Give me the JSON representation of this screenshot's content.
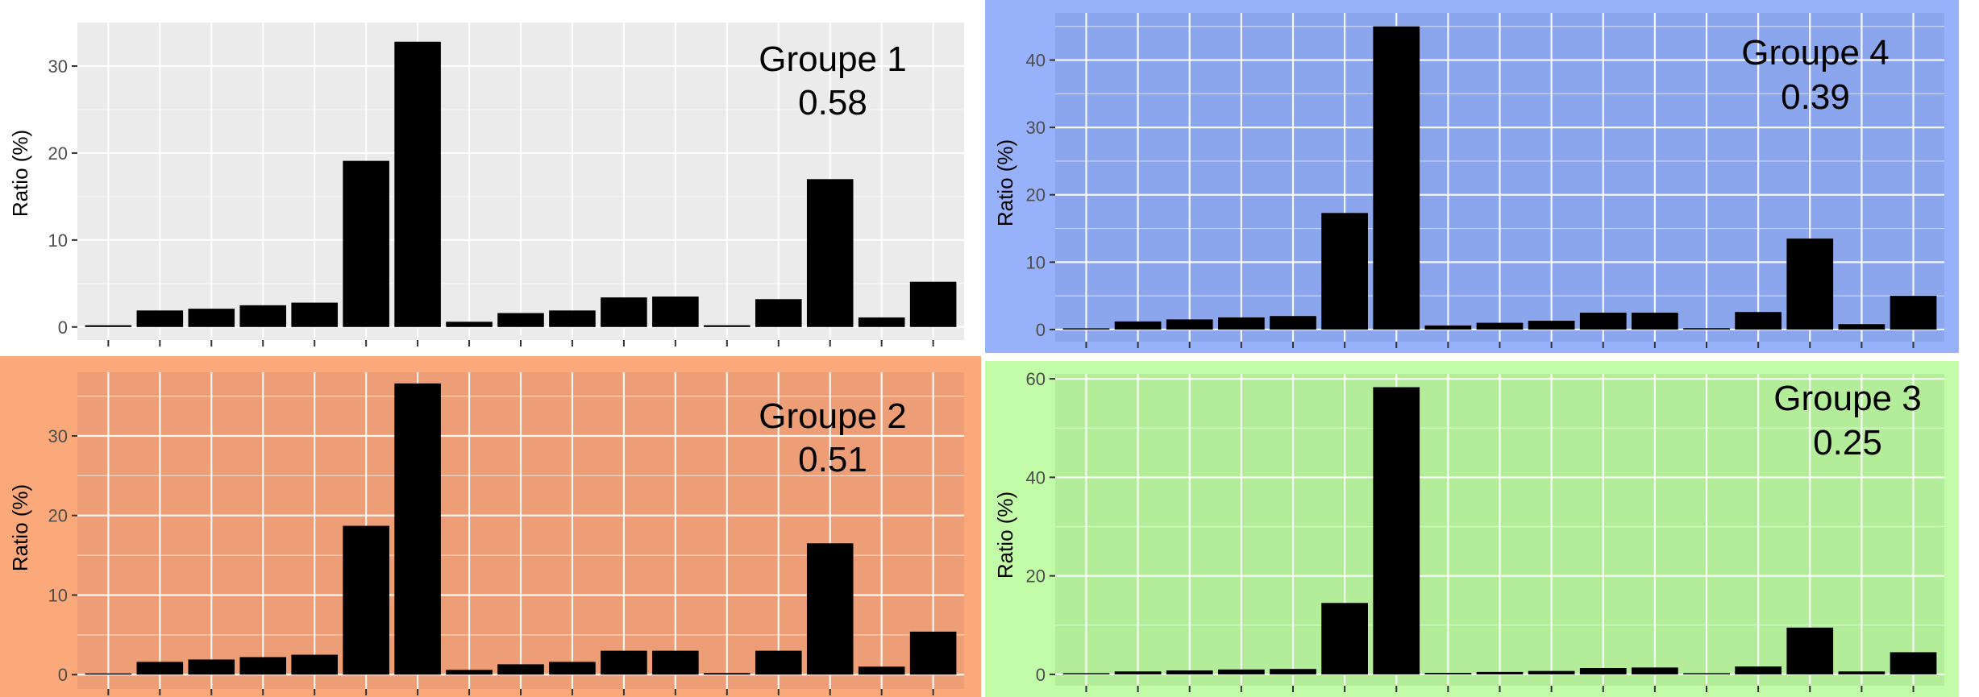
{
  "chart_data": [
    {
      "type": "bar",
      "ylabel": "Ratio (%)",
      "annotation_title": "Groupe 1",
      "annotation_value": "0.58",
      "yticks": [
        0,
        10,
        20,
        30
      ],
      "ylim": [
        -1.5,
        35
      ],
      "bg_color": "#ffffff",
      "plot_bg_color": "#ebebeb",
      "values": [
        0.2,
        1.9,
        2.1,
        2.5,
        2.8,
        19.1,
        32.8,
        0.6,
        1.6,
        1.9,
        3.4,
        3.5,
        0.2,
        3.2,
        17.0,
        1.1,
        5.2
      ]
    },
    {
      "type": "bar",
      "ylabel": "Ratio (%)",
      "annotation_title": "Groupe 4",
      "annotation_value": "0.39",
      "yticks": [
        0,
        10,
        20,
        30,
        40
      ],
      "ylim": [
        -1.8,
        47
      ],
      "bg_color": "#98b1fb",
      "plot_bg_color": "#8ba6ed",
      "values": [
        0.1,
        1.2,
        1.5,
        1.8,
        2.0,
        17.3,
        45.0,
        0.6,
        1.0,
        1.3,
        2.5,
        2.5,
        0.2,
        2.6,
        13.5,
        0.8,
        5.0
      ]
    },
    {
      "type": "bar",
      "ylabel": "Ratio (%)",
      "annotation_title": "Groupe 2",
      "annotation_value": "0.51",
      "yticks": [
        0,
        10,
        20,
        30
      ],
      "ylim": [
        -1.8,
        38
      ],
      "bg_color": "#fba97a",
      "plot_bg_color": "#ee9e76",
      "values": [
        0.1,
        1.6,
        1.9,
        2.2,
        2.5,
        18.7,
        36.6,
        0.6,
        1.3,
        1.6,
        3.0,
        3.0,
        0.2,
        3.0,
        16.5,
        1.0,
        5.4
      ]
    },
    {
      "type": "bar",
      "ylabel": "Ratio (%)",
      "annotation_title": "Groupe 3",
      "annotation_value": "0.25",
      "yticks": [
        0,
        20,
        40,
        60
      ],
      "ylim": [
        -2.3,
        61
      ],
      "bg_color": "#c2fca8",
      "plot_bg_color": "#b3ed9a",
      "values": [
        0.1,
        0.6,
        0.8,
        1.0,
        1.1,
        14.5,
        58.3,
        0.3,
        0.5,
        0.7,
        1.3,
        1.4,
        0.1,
        1.6,
        9.5,
        0.6,
        4.5
      ]
    }
  ]
}
